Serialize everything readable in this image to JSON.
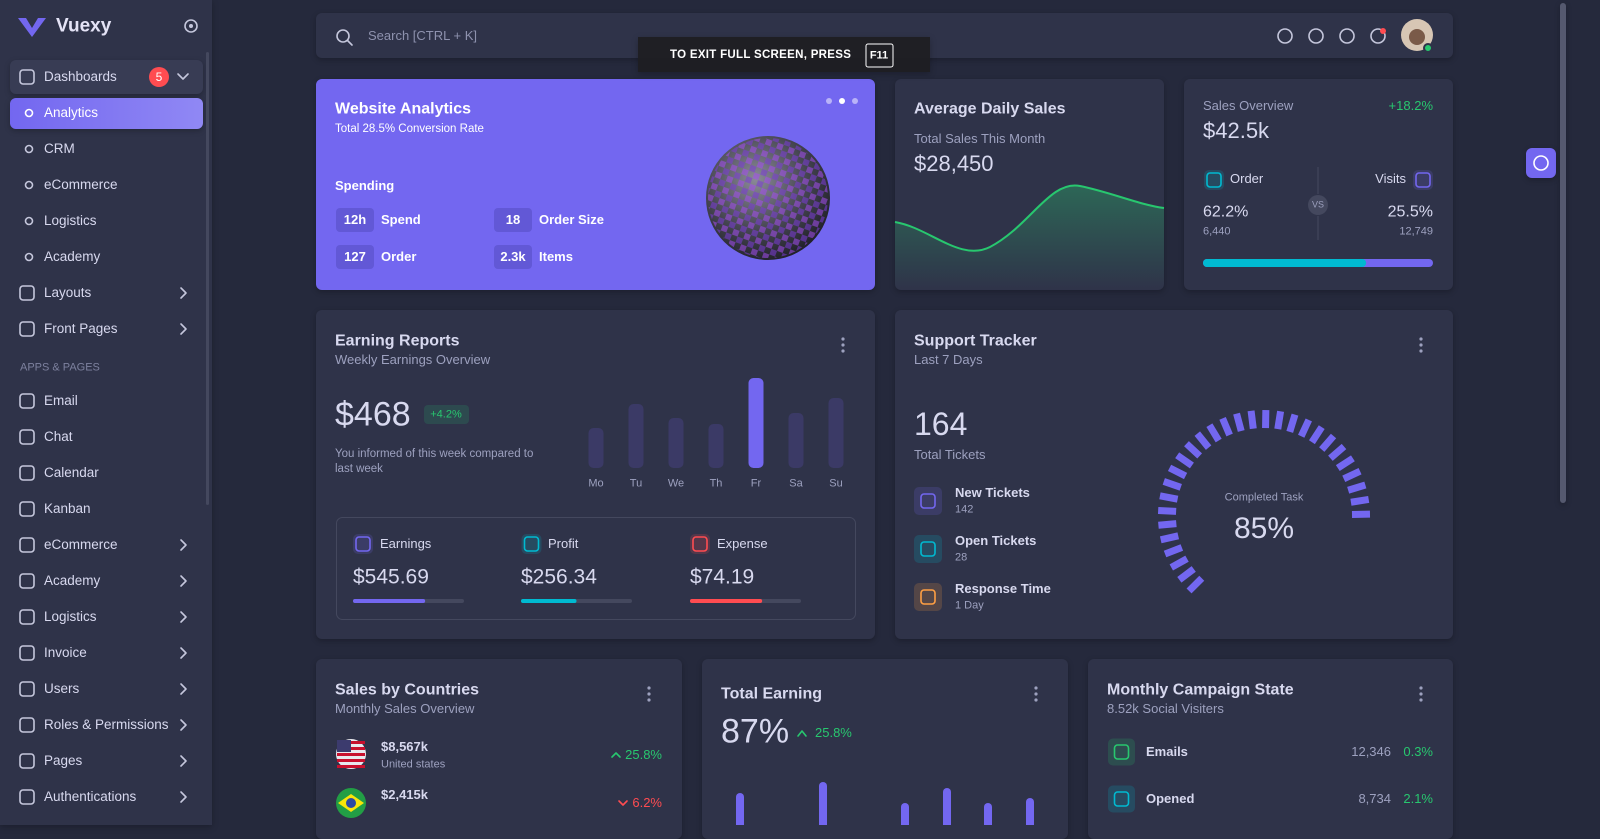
{
  "sidebar": {
    "brand": "Vuexy",
    "badge": 5,
    "menu": [
      "Dashboards",
      "Analytics",
      "CRM",
      "eCommerce",
      "Logistics",
      "Academy",
      "Layouts",
      "Front Pages"
    ],
    "section": "APPS & PAGES",
    "apps": [
      "Email",
      "Chat",
      "Calendar",
      "Kanban",
      "eCommerce",
      "Academy",
      "Logistics",
      "Invoice",
      "Users",
      "Roles & Permissions",
      "Pages",
      "Authentications"
    ]
  },
  "topbar": {
    "search_placeholder": "Search [CTRL + K]"
  },
  "fullscreen_notice": {
    "text": "TO EXIT FULL SCREEN, PRESS",
    "key": "F11"
  },
  "website_analytics": {
    "title": "Website Analytics",
    "subtitle": "Total 28.5% Conversion Rate",
    "section": "Spending",
    "stats": [
      {
        "value": "12h",
        "label": "Spend"
      },
      {
        "value": 18,
        "label": "Order Size"
      },
      {
        "value": 127,
        "label": "Order"
      },
      {
        "value": "2.3k",
        "label": "Items"
      }
    ]
  },
  "average_daily_sales": {
    "title": "Average Daily Sales",
    "subtitle": "Total Sales This Month",
    "value": "$28,450"
  },
  "sales_overview": {
    "title": "Sales Overview",
    "change": "+18.2%",
    "value": "$42.5k",
    "vs": "VS",
    "order": {
      "label": "Order",
      "percent": {
        "value": 62.2,
        "label": "62.2%"
      },
      "count": "6,440",
      "color": "#00bad1"
    },
    "visits": {
      "label": "Visits",
      "percent": {
        "value": 25.5,
        "label": "25.5%"
      },
      "count": "12,749",
      "color": "#7367f0"
    }
  },
  "earning_reports": {
    "title": "Earning Reports",
    "subtitle": "Weekly Earnings Overview",
    "value": "$468",
    "change": "+4.2%",
    "note": "You informed of this week compared to last week",
    "chart": {
      "type": "bar",
      "categories": [
        "Mo",
        "Tu",
        "We",
        "Th",
        "Fr",
        "Sa",
        "Su"
      ],
      "values": [
        40,
        64,
        50,
        44,
        90,
        55,
        70
      ],
      "colors": [
        "#3b3a66",
        "#3b3a66",
        "#3b3a66",
        "#3b3a66",
        "#7367f0",
        "#3b3a66",
        "#3b3a66"
      ]
    },
    "summary": [
      {
        "label": "Earnings",
        "value": "$545.69",
        "progress": 65,
        "color": "#7367f0"
      },
      {
        "label": "Profit",
        "value": "$256.34",
        "progress": 50,
        "color": "#00bad1"
      },
      {
        "label": "Expense",
        "value": "$74.19",
        "progress": 65,
        "color": "#ff4c51"
      }
    ]
  },
  "support_tracker": {
    "title": "Support Tracker",
    "subtitle": "Last 7 Days",
    "total": 164,
    "total_label": "Total Tickets",
    "items": [
      {
        "label": "New Tickets",
        "value": 142
      },
      {
        "label": "Open Tickets",
        "value": 28
      },
      {
        "label": "Response Time",
        "value": "1 Day"
      }
    ],
    "gauge": {
      "label": "Completed Task",
      "value": 85,
      "value_label": "85%",
      "color": "#7367f0"
    }
  },
  "sales_by_countries": {
    "title": "Sales by Countries",
    "subtitle": "Monthly Sales Overview",
    "rows": [
      {
        "value": "$8,567k",
        "country": "United states",
        "change": "25.8%",
        "trend": "up"
      },
      {
        "value": "$2,415k",
        "change": "6.2%",
        "trend": "down"
      }
    ]
  },
  "total_earning": {
    "title": "Total Earning",
    "value": "87%",
    "change": "25.8%",
    "chart": {
      "type": "bar",
      "values": [
        32,
        43,
        22,
        37,
        22,
        27
      ],
      "color": "#7367f0"
    }
  },
  "monthly_campaign": {
    "title": "Monthly Campaign State",
    "subtitle": "8.52k Social Visiters",
    "rows": [
      {
        "label": "Emails",
        "value": "12,346",
        "change": "0.3%"
      },
      {
        "label": "Opened",
        "value": "8,734",
        "change": "2.1%"
      }
    ]
  }
}
